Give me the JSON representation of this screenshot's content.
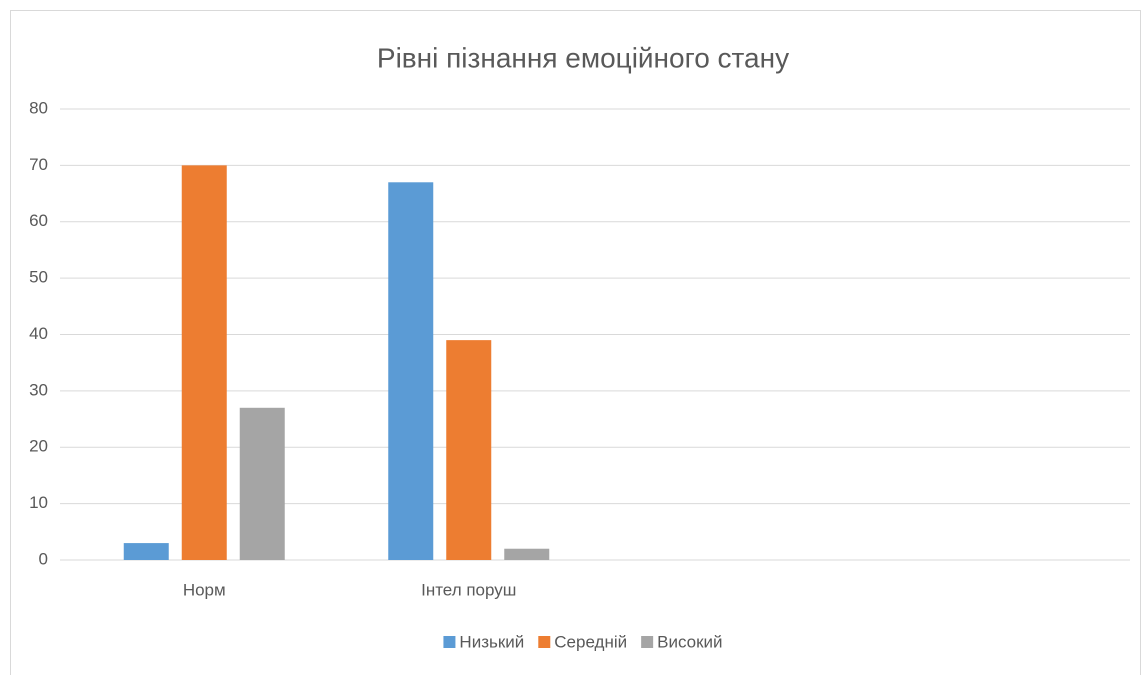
{
  "chart_data": {
    "type": "bar",
    "title": "Рівні пізнання емоційного стану",
    "categories": [
      "Норм",
      "Інтел поруш",
      null,
      null
    ],
    "series": [
      {
        "name": "Низький",
        "color": "#5b9bd5",
        "values": [
          3,
          67,
          null,
          null
        ]
      },
      {
        "name": "Середній",
        "color": "#ed7d31",
        "values": [
          70,
          39,
          null,
          null
        ]
      },
      {
        "name": "Високий",
        "color": "#a5a5a5",
        "values": [
          27,
          2,
          null,
          null
        ]
      }
    ],
    "ylim": [
      0,
      80
    ],
    "yticks": [
      0,
      10,
      20,
      30,
      40,
      50,
      60,
      70,
      80
    ],
    "grid": true,
    "legend": "bottom"
  }
}
